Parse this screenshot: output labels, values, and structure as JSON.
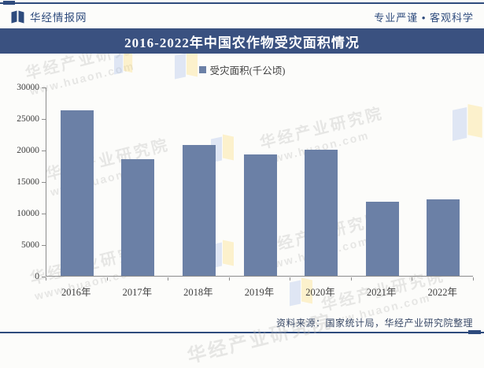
{
  "page": {
    "header": {
      "brand": "华经情报网",
      "slogan": "专业严谨 • 客观科学"
    },
    "banner_title": "2016-2022年中国农作物受灾面积情况",
    "source_note": "资料来源：国家统计局，华经产业研究院整理",
    "watermark": {
      "text": "华经产业研究院",
      "url": "www.huaon.com"
    }
  },
  "colors": {
    "navy": "#2E4B7D",
    "banner_bg": "#3A5180",
    "bar": "#6B80A6",
    "axis": "#8C8C8C",
    "label": "#404040",
    "source_text": "#3A4A68"
  },
  "chart_data": {
    "type": "bar",
    "title": "2016-2022年中国农作物受灾面积情况",
    "legend": [
      "受灾面积(千公顷)"
    ],
    "legend_position": "top-center",
    "categories": [
      "2016年",
      "2017年",
      "2018年",
      "2019年",
      "2020年",
      "2021年",
      "2022年"
    ],
    "series": [
      {
        "name": "受灾面积(千公顷)",
        "values": [
          26221,
          18478,
          20814,
          19257,
          19958,
          11739,
          12071
        ]
      }
    ],
    "xlabel": "",
    "ylabel": "",
    "ylim": [
      0,
      30000
    ],
    "yticks": [
      0,
      5000,
      10000,
      15000,
      20000,
      25000,
      30000
    ],
    "grid": false
  }
}
